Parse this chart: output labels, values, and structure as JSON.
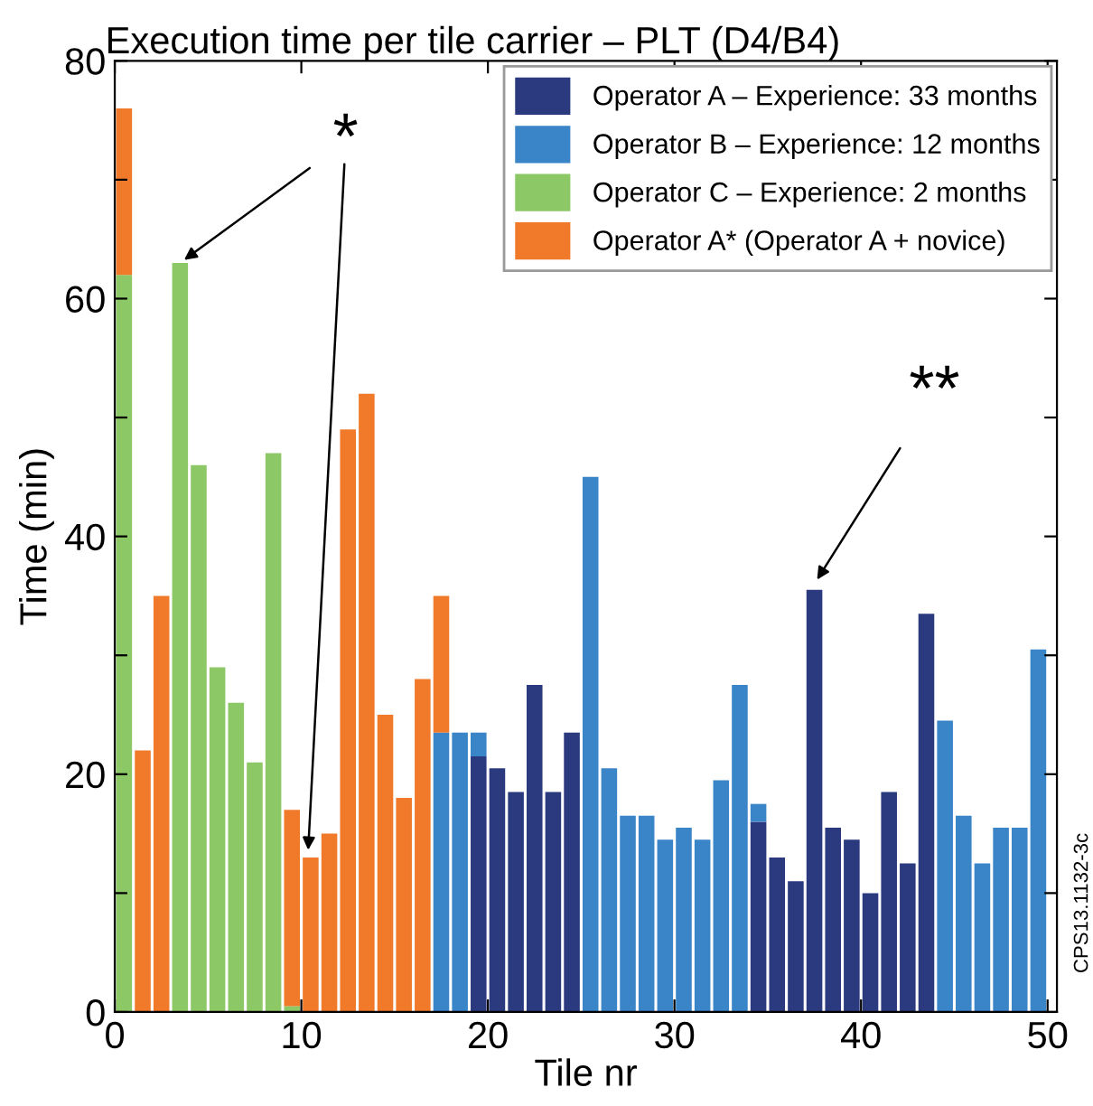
{
  "chart_data": {
    "type": "bar",
    "stacked": true,
    "title": "Execution time per tile carrier – PLT (D4/B4)",
    "xlabel": "Tile nr",
    "ylabel": "Time (min)",
    "x": [
      0.5,
      1.5,
      2.5,
      3.5,
      4.5,
      5.5,
      6.5,
      7.5,
      8.5,
      9.5,
      10.5,
      11.5,
      12.5,
      13.5,
      14.5,
      15.5,
      16.5,
      17.5,
      18.5,
      19.5,
      20.5,
      21.5,
      22.5,
      23.5,
      24.5,
      25.5,
      26.5,
      27.5,
      28.5,
      29.5,
      30.5,
      31.5,
      32.5,
      33.5,
      34.5,
      35.5,
      36.5,
      37.5,
      38.5,
      39.5,
      40.5,
      41.5,
      42.5,
      43.5,
      44.5,
      45.5,
      46.5,
      47.5,
      48.5,
      49.5
    ],
    "series": [
      {
        "name": "Operator A – Experience: 33 months",
        "color": "#2b3a7e",
        "values": [
          null,
          null,
          null,
          null,
          null,
          null,
          null,
          null,
          null,
          null,
          null,
          null,
          null,
          null,
          null,
          null,
          null,
          null,
          null,
          21.5,
          20.5,
          18.5,
          27.5,
          18.5,
          23.5,
          null,
          null,
          null,
          null,
          null,
          null,
          null,
          null,
          null,
          16,
          13,
          11,
          35.5,
          15.5,
          14.5,
          10,
          18.5,
          12.5,
          33.5,
          null,
          null,
          null,
          null,
          null,
          null
        ]
      },
      {
        "name": "Operator B – Experience: 12 months",
        "color": "#3a85c8",
        "values": [
          null,
          null,
          null,
          null,
          null,
          null,
          null,
          null,
          null,
          null,
          null,
          null,
          null,
          null,
          null,
          null,
          null,
          23.5,
          23.5,
          2,
          null,
          null,
          null,
          null,
          null,
          45,
          20.5,
          16.5,
          16.5,
          14.5,
          15.5,
          14.5,
          19.5,
          27.5,
          1.5,
          null,
          null,
          null,
          null,
          null,
          null,
          null,
          null,
          null,
          24.5,
          16.5,
          12.5,
          15.5,
          15.5,
          30.5
        ]
      },
      {
        "name": "Operator C – Experience: 2 months",
        "color": "#8cc866",
        "values": [
          62,
          null,
          null,
          63,
          46,
          29,
          26,
          21,
          47,
          0.5,
          null,
          null,
          null,
          null,
          null,
          null,
          null,
          null,
          null,
          null,
          null,
          null,
          null,
          null,
          null,
          null,
          null,
          null,
          null,
          null,
          null,
          null,
          null,
          null,
          null,
          null,
          null,
          null,
          null,
          null,
          null,
          null,
          null,
          null,
          null,
          null,
          null,
          null,
          null,
          null
        ]
      },
      {
        "name": "Operator A* (Operator A + novice)",
        "color": "#f07a2a",
        "values": [
          14,
          22,
          35,
          null,
          null,
          null,
          null,
          null,
          null,
          16.5,
          13,
          15,
          49,
          52,
          25,
          18,
          28,
          11.5,
          null,
          null,
          null,
          null,
          null,
          null,
          null,
          null,
          null,
          null,
          null,
          null,
          null,
          null,
          null,
          null,
          null,
          null,
          null,
          null,
          null,
          null,
          null,
          null,
          null,
          null,
          null,
          null,
          null,
          null,
          null,
          null
        ]
      }
    ],
    "xlim": [
      0,
      50.5
    ],
    "xticks": [
      0,
      10,
      20,
      30,
      40,
      50
    ],
    "ylim": [
      0,
      80
    ],
    "yticks": [
      0,
      {
        "value": 10,
        "label": null
      },
      20,
      {
        "value": 30,
        "label": null
      },
      40,
      {
        "value": 50,
        "label": null
      },
      60,
      {
        "value": 70,
        "label": null
      },
      80
    ],
    "legend": "top right",
    "grid": false,
    "annotations": [
      {
        "text": "*",
        "x": 3.5,
        "y": 63
      },
      {
        "text": "**",
        "x": 37.5,
        "y": 36
      },
      "CPS13.1132-3c"
    ]
  }
}
